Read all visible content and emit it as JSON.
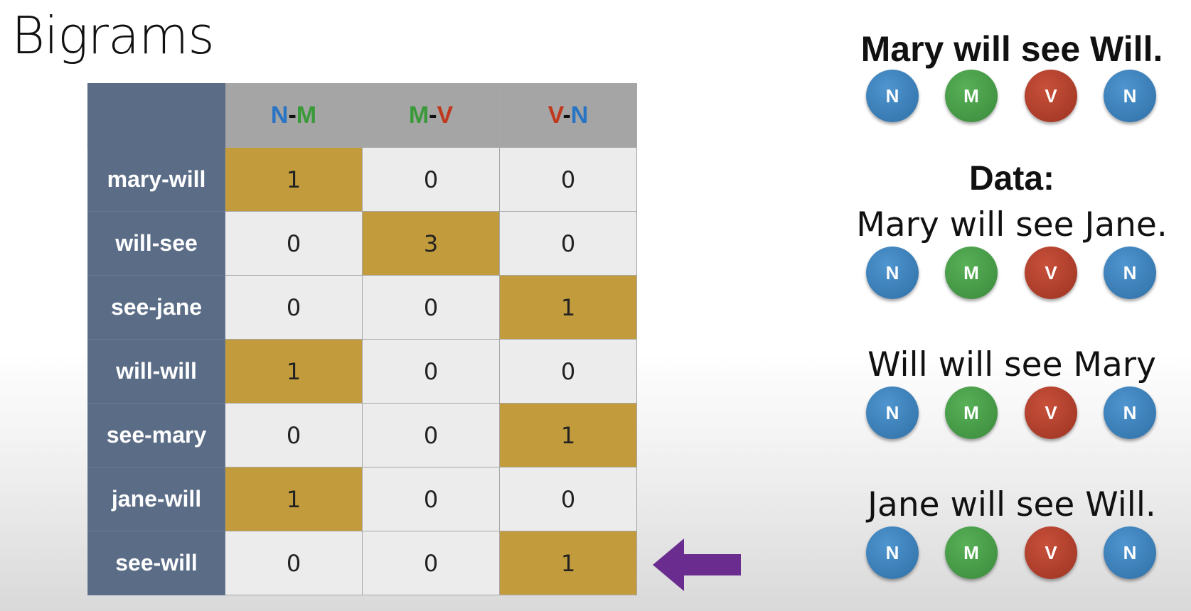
{
  "title": "Bigrams",
  "table": {
    "columns": [
      {
        "tag1": "N",
        "tag2": "M"
      },
      {
        "tag1": "M",
        "tag2": "V"
      },
      {
        "tag1": "V",
        "tag2": "N"
      }
    ],
    "rows": [
      {
        "label": "mary-will",
        "values": [
          "1",
          "0",
          "0"
        ],
        "highlight": 0
      },
      {
        "label": "will-see",
        "values": [
          "0",
          "3",
          "0"
        ],
        "highlight": 1
      },
      {
        "label": "see-jane",
        "values": [
          "0",
          "0",
          "1"
        ],
        "highlight": 2
      },
      {
        "label": "will-will",
        "values": [
          "1",
          "0",
          "0"
        ],
        "highlight": 0
      },
      {
        "label": "see-mary",
        "values": [
          "0",
          "0",
          "1"
        ],
        "highlight": 2
      },
      {
        "label": "jane-will",
        "values": [
          "1",
          "0",
          "0"
        ],
        "highlight": 0
      },
      {
        "label": "see-will",
        "values": [
          "0",
          "0",
          "1"
        ],
        "highlight": 2
      }
    ]
  },
  "query": {
    "sentence": "Mary will see Will.",
    "tags": [
      "N",
      "M",
      "V",
      "N"
    ]
  },
  "data_label": "Data:",
  "examples": [
    {
      "sentence": "Mary will see Jane.",
      "tags": [
        "N",
        "M",
        "V",
        "N"
      ]
    },
    {
      "sentence": "Will will see Mary",
      "tags": [
        "N",
        "M",
        "V",
        "N"
      ]
    },
    {
      "sentence": "Jane will see Will.",
      "tags": [
        "N",
        "M",
        "V",
        "N"
      ]
    }
  ],
  "colors": {
    "N": "#2f6fa6",
    "M": "#3a8a3b",
    "V": "#9c3322",
    "highlight": "#c29c3c",
    "row_header": "#5a6c86",
    "arrow": "#6a2d8f"
  },
  "arrow_icon": "left-arrow-icon"
}
